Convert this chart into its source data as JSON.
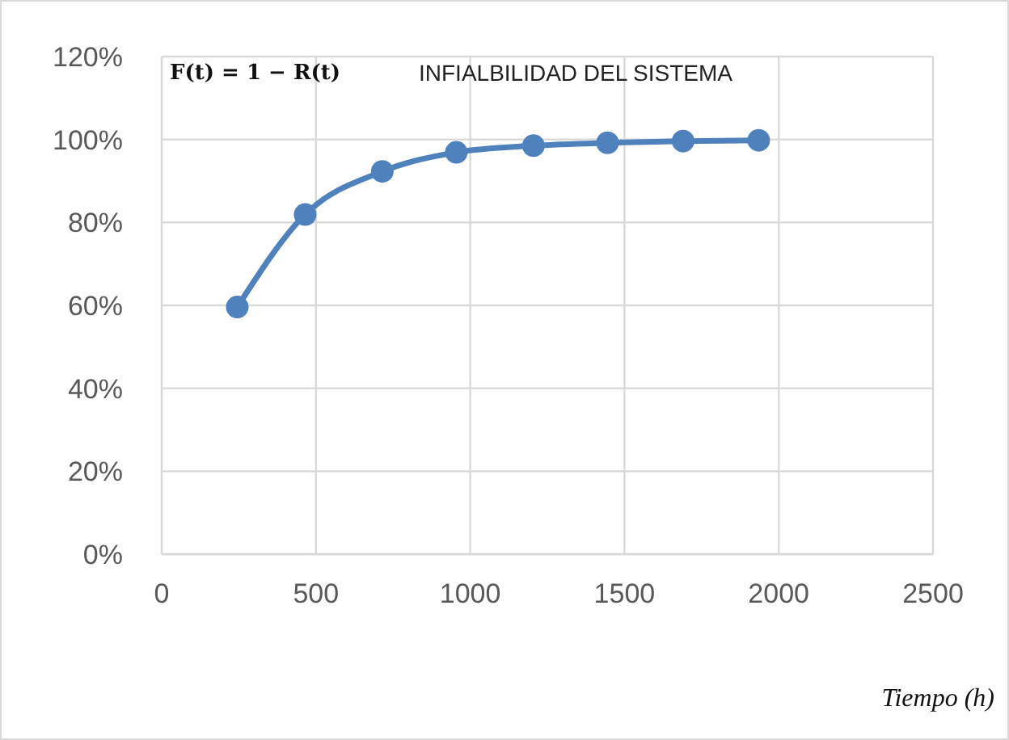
{
  "chart_data": {
    "type": "line",
    "title": "INFIALBILIDAD DEL SISTEMA",
    "xlabel": "Tiempo (h)",
    "annotations": [
      "F(t) = 1 − R(t)"
    ],
    "x": [
      245,
      465,
      715,
      955,
      1205,
      1445,
      1690,
      1935
    ],
    "series": [
      {
        "color": "#4f81bd",
        "values": [
          59.6,
          81.9,
          92.3,
          96.9,
          98.5,
          99.2,
          99.6,
          99.8
        ]
      }
    ],
    "xlim": [
      0,
      2500
    ],
    "xticks": [
      0,
      500,
      1000,
      1500,
      2000,
      2500
    ],
    "ylim": [
      0,
      120
    ],
    "yticks": [
      {
        "value": 0,
        "label": "0%"
      },
      {
        "value": 20,
        "label": "20%"
      },
      {
        "value": 40,
        "label": "40%"
      },
      {
        "value": 60,
        "label": "60%"
      },
      {
        "value": 80,
        "label": "80%"
      },
      {
        "value": 100,
        "label": "100%"
      },
      {
        "value": 120,
        "label": "120%"
      }
    ],
    "grid": true,
    "marker": "circle",
    "line_style": "solid"
  }
}
